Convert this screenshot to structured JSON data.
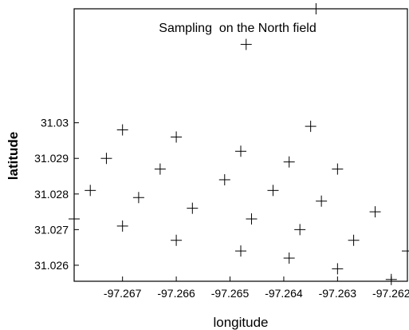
{
  "chart_data": {
    "type": "scatter",
    "title": "Sampling  on the North field",
    "xlabel": "longitude",
    "ylabel": "latitude",
    "xlim": [
      -97.2679,
      -97.2617
    ],
    "ylim": [
      31.02555,
      31.0332
    ],
    "x_ticks": [
      -97.267,
      -97.266,
      -97.265,
      -97.264,
      -97.263,
      -97.262
    ],
    "x_tick_labels": [
      "-97.267",
      "-97.266",
      "-97.265",
      "-97.264",
      "-97.263",
      "-97.262"
    ],
    "y_ticks": [
      31.026,
      31.027,
      31.028,
      31.029,
      31.03
    ],
    "y_tick_labels": [
      "31.026",
      "31.027",
      "31.028",
      "31.029",
      "31.03"
    ],
    "grid": false,
    "marker": "plus",
    "points": [
      {
        "x": -97.2634,
        "y": 31.0332
      },
      {
        "x": -97.2647,
        "y": 31.0322
      },
      {
        "x": -97.2635,
        "y": 31.0299
      },
      {
        "x": -97.267,
        "y": 31.0298
      },
      {
        "x": -97.266,
        "y": 31.0296
      },
      {
        "x": -97.2648,
        "y": 31.0292
      },
      {
        "x": -97.2673,
        "y": 31.029
      },
      {
        "x": -97.2639,
        "y": 31.0289
      },
      {
        "x": -97.2663,
        "y": 31.0287
      },
      {
        "x": -97.263,
        "y": 31.0287
      },
      {
        "x": -97.2651,
        "y": 31.0284
      },
      {
        "x": -97.2676,
        "y": 31.0281
      },
      {
        "x": -97.2642,
        "y": 31.0281
      },
      {
        "x": -97.2667,
        "y": 31.0279
      },
      {
        "x": -97.2633,
        "y": 31.0278
      },
      {
        "x": -97.2657,
        "y": 31.0276
      },
      {
        "x": -97.2623,
        "y": 31.0275
      },
      {
        "x": -97.2679,
        "y": 31.0273
      },
      {
        "x": -97.2646,
        "y": 31.0273
      },
      {
        "x": -97.267,
        "y": 31.0271
      },
      {
        "x": -97.2637,
        "y": 31.027
      },
      {
        "x": -97.266,
        "y": 31.0267
      },
      {
        "x": -97.2627,
        "y": 31.0267
      },
      {
        "x": -97.2648,
        "y": 31.0264
      },
      {
        "x": -97.2617,
        "y": 31.0264
      },
      {
        "x": -97.2639,
        "y": 31.0262
      },
      {
        "x": -97.263,
        "y": 31.0259
      },
      {
        "x": -97.262,
        "y": 31.0256
      }
    ]
  }
}
